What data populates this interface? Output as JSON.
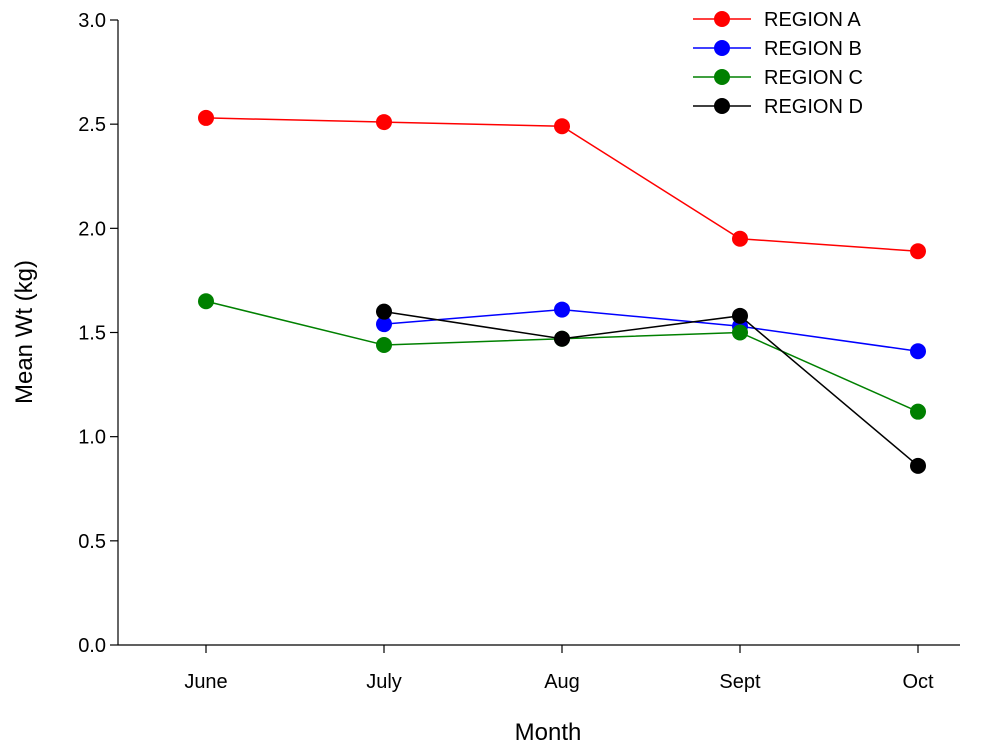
{
  "chart_data": {
    "type": "line",
    "title": "",
    "xlabel": "Month",
    "ylabel": "Mean Wt (kg)",
    "categories": [
      "June",
      "July",
      "Aug",
      "Sept",
      "Oct"
    ],
    "ylim": [
      0,
      3.0
    ],
    "yticks": [
      "0.0",
      "0.5",
      "1.0",
      "1.5",
      "2.0",
      "2.5",
      "3.0"
    ],
    "grid": false,
    "legend_position": "top-right",
    "series": [
      {
        "name": "REGION A",
        "color": "#ff0000",
        "values": [
          2.53,
          2.51,
          2.49,
          1.95,
          1.89
        ]
      },
      {
        "name": "REGION B",
        "color": "#0000ff",
        "values": [
          null,
          1.54,
          1.61,
          1.53,
          1.41
        ]
      },
      {
        "name": "REGION C",
        "color": "#008000",
        "values": [
          1.65,
          1.44,
          1.47,
          1.5,
          1.12
        ]
      },
      {
        "name": "REGION D",
        "color": "#000000",
        "values": [
          null,
          1.6,
          1.47,
          1.58,
          0.86
        ]
      }
    ]
  }
}
